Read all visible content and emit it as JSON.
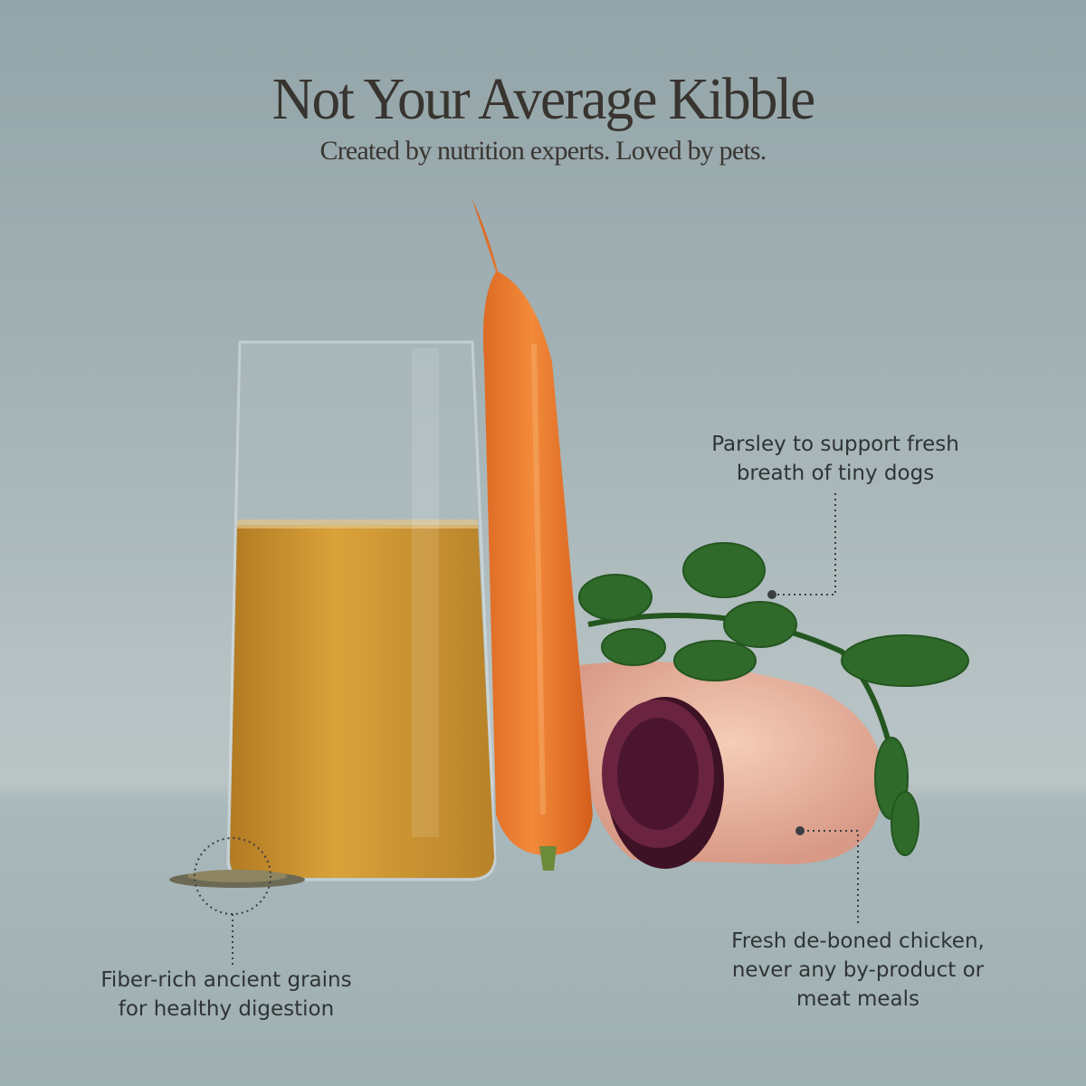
{
  "header": {
    "title": "Not Your Average Kibble",
    "subtitle": "Created by nutrition experts. Loved by pets."
  },
  "callouts": {
    "parsley": [
      "Parsley to support fresh",
      "breath of tiny dogs"
    ],
    "chicken": [
      "Fresh de-boned chicken,",
      "never any by-product or",
      "meat meals"
    ],
    "grains": [
      "Fiber-rich ancient grains",
      "for healthy digestion"
    ]
  },
  "colors": {
    "background": "#a3b2b5",
    "title_text": "#38342f",
    "broth": "#c8952e",
    "carrot": "#e8732c",
    "parsley": "#2f6a2a",
    "chicken": "#e9b9a4",
    "beet": "#5a1d33"
  }
}
